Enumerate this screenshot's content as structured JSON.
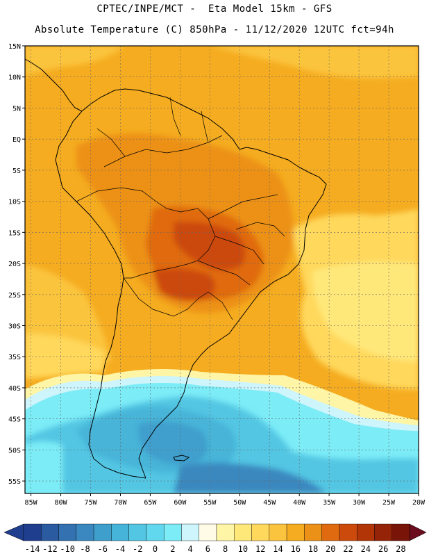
{
  "header": {
    "line1": "CPTEC/INPE/MCT -  Eta Model 15km - GFS",
    "line2": "Absolute Temperature (C) 850hPa - 11/12/2020 12UTC fct=94h"
  },
  "map": {
    "lat_labels": [
      "15N",
      "10N",
      "5N",
      "EQ",
      "5S",
      "10S",
      "15S",
      "20S",
      "25S",
      "30S",
      "35S",
      "40S",
      "45S",
      "50S",
      "55S"
    ],
    "lon_labels": [
      "85W",
      "80W",
      "75W",
      "70W",
      "65W",
      "60W",
      "55W",
      "50W",
      "45W",
      "40W",
      "35W",
      "30W",
      "25W",
      "20W"
    ],
    "lat_range": [
      15,
      -57
    ],
    "lon_range": [
      -86,
      -20
    ]
  },
  "colorbar": {
    "labels": [
      "-14",
      "-12",
      "-10",
      "-8",
      "-6",
      "-4",
      "-2",
      "0",
      "2",
      "4",
      "6",
      "8",
      "10",
      "12",
      "14",
      "16",
      "18",
      "20",
      "22",
      "24",
      "26",
      "28"
    ],
    "colors": [
      "#1f3e8e",
      "#2a5aa0",
      "#3371b0",
      "#3a88bf",
      "#3f9fcc",
      "#46b4d8",
      "#52c6e3",
      "#62d8ee",
      "#7cecf7",
      "#cdf5fb",
      "#fffbe6",
      "#fff5a6",
      "#ffe87a",
      "#ffd85c",
      "#fbc43e",
      "#f5ac20",
      "#ec9118",
      "#e06a10",
      "#cc4a0c",
      "#b23508",
      "#952308",
      "#781508"
    ]
  }
}
